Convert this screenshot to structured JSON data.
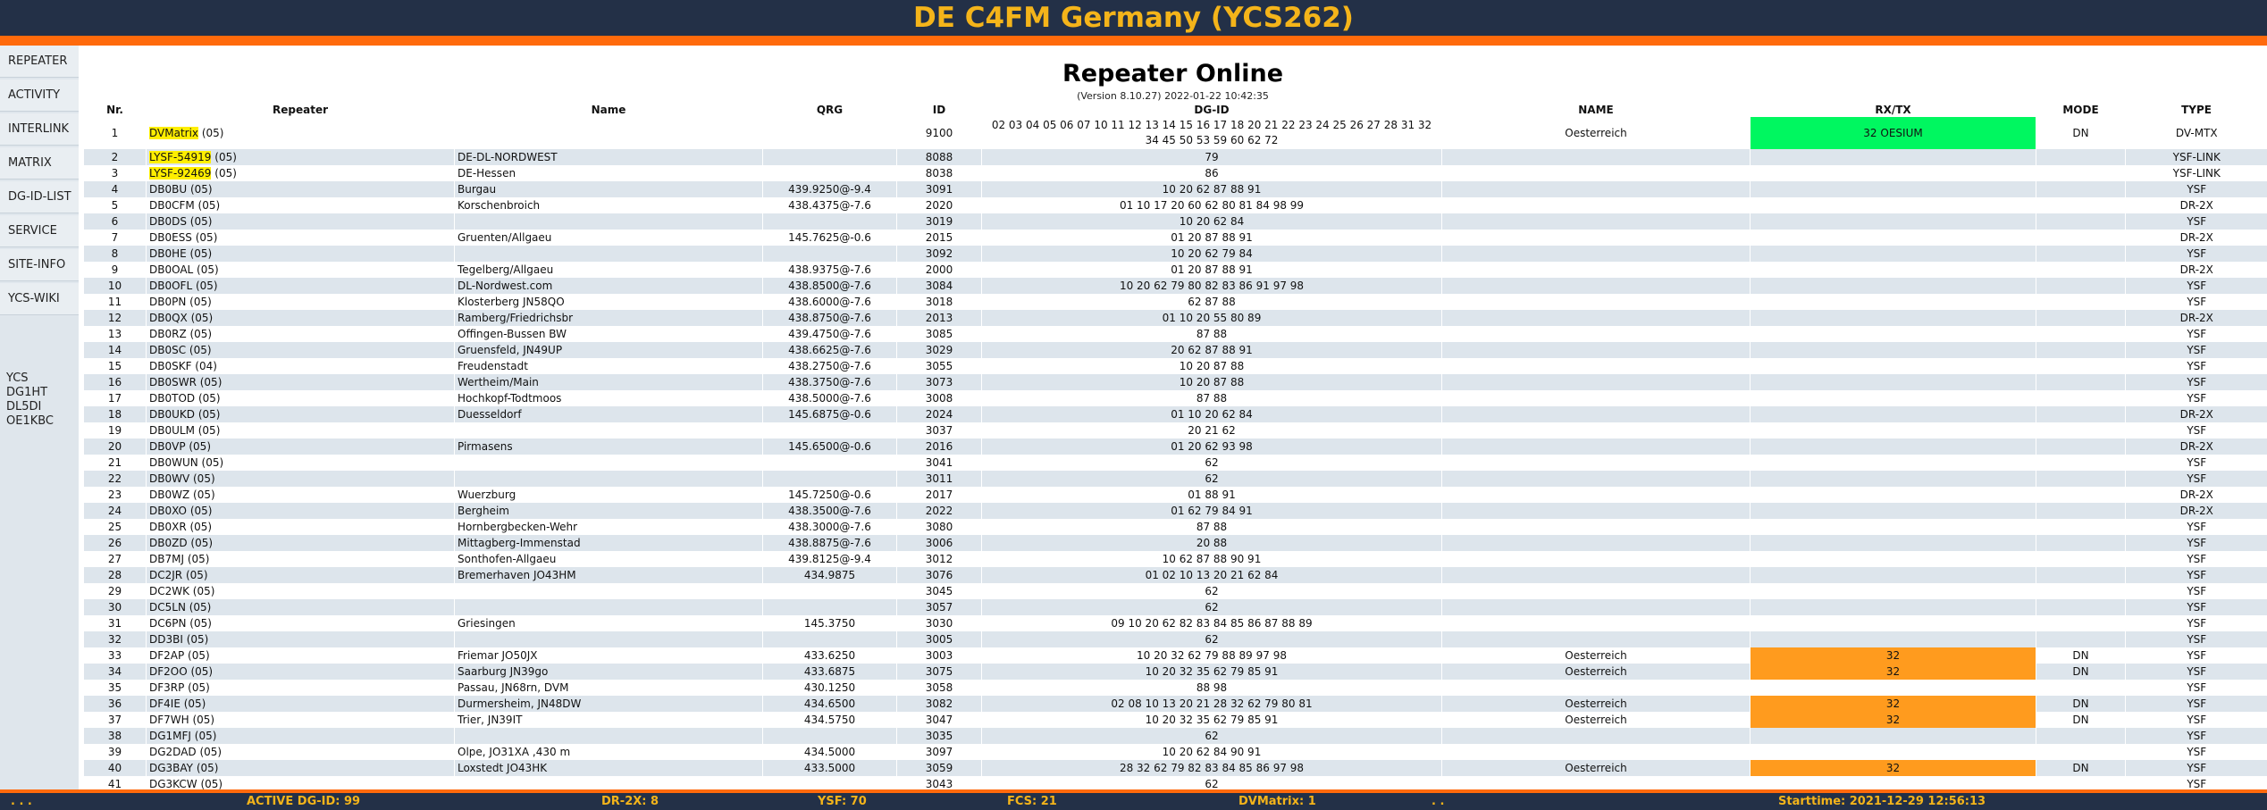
{
  "header": {
    "title": "DE C4FM Germany (YCS262)"
  },
  "nav": [
    "REPEATER",
    "ACTIVITY",
    "INTERLINK",
    "MATRIX",
    "DG-ID-LIST",
    "SERVICE",
    "SITE-INFO",
    "YCS-WIKI"
  ],
  "sideinfo": [
    "YCS",
    "DG1HT",
    "DL5DI",
    "OE1KBC"
  ],
  "main": {
    "title": "Repeater Online",
    "version": "(Version 8.10.27) 2022-01-22 10:42:35",
    "columns": [
      "Nr.",
      "Repeater",
      "Name",
      "QRG",
      "ID",
      "DG-ID",
      "NAME",
      "RX/TX",
      "MODE",
      "TYPE"
    ],
    "rows": [
      {
        "nr": "1",
        "rep": "DVMatrix",
        "suffix": " (05)",
        "name": "",
        "qrg": "",
        "id": "9100",
        "dgid": "02 03 04 05 06 07 10 11 12 13 14 15 16 17 18 20 21 22 23 24 25 26 27 28 31 32 34 45 50 53 59 60 62 72",
        "nname": "Oesterreich",
        "rxtx": "32 OESIUM",
        "mode": "DN",
        "type": "DV-MTX",
        "hl": true,
        "rxc": "green"
      },
      {
        "nr": "2",
        "rep": "LYSF-54919",
        "suffix": " (05)",
        "name": "DE-DL-NORDWEST",
        "qrg": "",
        "id": "8088",
        "dgid": "79",
        "nname": "",
        "rxtx": "",
        "mode": "",
        "type": "YSF-LINK",
        "hl": true
      },
      {
        "nr": "3",
        "rep": "LYSF-92469",
        "suffix": " (05)",
        "name": "DE-Hessen",
        "qrg": "",
        "id": "8038",
        "dgid": "86",
        "nname": "",
        "rxtx": "",
        "mode": "",
        "type": "YSF-LINK",
        "hl": true
      },
      {
        "nr": "4",
        "rep": "DB0BU (05)",
        "name": "Burgau",
        "qrg": "439.9250@-9.4",
        "id": "3091",
        "dgid": "10 20 62 87 88 91",
        "nname": "",
        "rxtx": "",
        "mode": "",
        "type": "YSF"
      },
      {
        "nr": "5",
        "rep": "DB0CFM (05)",
        "name": "Korschenbroich",
        "qrg": "438.4375@-7.6",
        "id": "2020",
        "dgid": "01 10 17 20 60 62 80 81 84 98 99",
        "nname": "",
        "rxtx": "",
        "mode": "",
        "type": "DR-2X"
      },
      {
        "nr": "6",
        "rep": "DB0DS (05)",
        "name": "",
        "qrg": "",
        "id": "3019",
        "dgid": "10 20 62 84",
        "nname": "",
        "rxtx": "",
        "mode": "",
        "type": "YSF"
      },
      {
        "nr": "7",
        "rep": "DB0ESS (05)",
        "name": "Gruenten/Allgaeu",
        "qrg": "145.7625@-0.6",
        "id": "2015",
        "dgid": "01 20 87 88 91",
        "nname": "",
        "rxtx": "",
        "mode": "",
        "type": "DR-2X"
      },
      {
        "nr": "8",
        "rep": "DB0HE (05)",
        "name": "",
        "qrg": "",
        "id": "3092",
        "dgid": "10 20 62 79 84",
        "nname": "",
        "rxtx": "",
        "mode": "",
        "type": "YSF"
      },
      {
        "nr": "9",
        "rep": "DB0OAL (05)",
        "name": "Tegelberg/Allgaeu",
        "qrg": "438.9375@-7.6",
        "id": "2000",
        "dgid": "01 20 87 88 91",
        "nname": "",
        "rxtx": "",
        "mode": "",
        "type": "DR-2X"
      },
      {
        "nr": "10",
        "rep": "DB0OFL (05)",
        "name": "DL-Nordwest.com",
        "qrg": "438.8500@-7.6",
        "id": "3084",
        "dgid": "10 20 62 79 80 82 83 86 91 97 98",
        "nname": "",
        "rxtx": "",
        "mode": "",
        "type": "YSF"
      },
      {
        "nr": "11",
        "rep": "DB0PN (05)",
        "name": "Klosterberg JN58QO",
        "qrg": "438.6000@-7.6",
        "id": "3018",
        "dgid": "62 87 88",
        "nname": "",
        "rxtx": "",
        "mode": "",
        "type": "YSF"
      },
      {
        "nr": "12",
        "rep": "DB0QX (05)",
        "name": "Ramberg/Friedrichsbr",
        "qrg": "438.8750@-7.6",
        "id": "2013",
        "dgid": "01 10 20 55 80 89",
        "nname": "",
        "rxtx": "",
        "mode": "",
        "type": "DR-2X"
      },
      {
        "nr": "13",
        "rep": "DB0RZ (05)",
        "name": "Offingen-Bussen BW",
        "qrg": "439.4750@-7.6",
        "id": "3085",
        "dgid": "87 88",
        "nname": "",
        "rxtx": "",
        "mode": "",
        "type": "YSF"
      },
      {
        "nr": "14",
        "rep": "DB0SC (05)",
        "name": "Gruensfeld, JN49UP",
        "qrg": "438.6625@-7.6",
        "id": "3029",
        "dgid": "20 62 87 88 91",
        "nname": "",
        "rxtx": "",
        "mode": "",
        "type": "YSF"
      },
      {
        "nr": "15",
        "rep": "DB0SKF (04)",
        "name": "Freudenstadt",
        "qrg": "438.2750@-7.6",
        "id": "3055",
        "dgid": "10 20 87 88",
        "nname": "",
        "rxtx": "",
        "mode": "",
        "type": "YSF"
      },
      {
        "nr": "16",
        "rep": "DB0SWR (05)",
        "name": "Wertheim/Main",
        "qrg": "438.3750@-7.6",
        "id": "3073",
        "dgid": "10 20 87 88",
        "nname": "",
        "rxtx": "",
        "mode": "",
        "type": "YSF"
      },
      {
        "nr": "17",
        "rep": "DB0TOD (05)",
        "name": "Hochkopf-Todtmoos",
        "qrg": "438.5000@-7.6",
        "id": "3008",
        "dgid": "87 88",
        "nname": "",
        "rxtx": "",
        "mode": "",
        "type": "YSF"
      },
      {
        "nr": "18",
        "rep": "DB0UKD (05)",
        "name": "Duesseldorf",
        "qrg": "145.6875@-0.6",
        "id": "2024",
        "dgid": "01 10 20 62 84",
        "nname": "",
        "rxtx": "",
        "mode": "",
        "type": "DR-2X"
      },
      {
        "nr": "19",
        "rep": "DB0ULM (05)",
        "name": "",
        "qrg": "",
        "id": "3037",
        "dgid": "20 21 62",
        "nname": "",
        "rxtx": "",
        "mode": "",
        "type": "YSF"
      },
      {
        "nr": "20",
        "rep": "DB0VP (05)",
        "name": "Pirmasens",
        "qrg": "145.6500@-0.6",
        "id": "2016",
        "dgid": "01 20 62 93 98",
        "nname": "",
        "rxtx": "",
        "mode": "",
        "type": "DR-2X"
      },
      {
        "nr": "21",
        "rep": "DB0WUN (05)",
        "name": "",
        "qrg": "",
        "id": "3041",
        "dgid": "62",
        "nname": "",
        "rxtx": "",
        "mode": "",
        "type": "YSF"
      },
      {
        "nr": "22",
        "rep": "DB0WV (05)",
        "name": "",
        "qrg": "",
        "id": "3011",
        "dgid": "62",
        "nname": "",
        "rxtx": "",
        "mode": "",
        "type": "YSF"
      },
      {
        "nr": "23",
        "rep": "DB0WZ (05)",
        "name": "Wuerzburg",
        "qrg": "145.7250@-0.6",
        "id": "2017",
        "dgid": "01 88 91",
        "nname": "",
        "rxtx": "",
        "mode": "",
        "type": "DR-2X"
      },
      {
        "nr": "24",
        "rep": "DB0XO (05)",
        "name": "Bergheim",
        "qrg": "438.3500@-7.6",
        "id": "2022",
        "dgid": "01 62 79 84 91",
        "nname": "",
        "rxtx": "",
        "mode": "",
        "type": "DR-2X"
      },
      {
        "nr": "25",
        "rep": "DB0XR (05)",
        "name": "Hornbergbecken-Wehr",
        "qrg": "438.3000@-7.6",
        "id": "3080",
        "dgid": "87 88",
        "nname": "",
        "rxtx": "",
        "mode": "",
        "type": "YSF"
      },
      {
        "nr": "26",
        "rep": "DB0ZD (05)",
        "name": "Mittagberg-Immenstad",
        "qrg": "438.8875@-7.6",
        "id": "3006",
        "dgid": "20 88",
        "nname": "",
        "rxtx": "",
        "mode": "",
        "type": "YSF"
      },
      {
        "nr": "27",
        "rep": "DB7MJ (05)",
        "name": "Sonthofen-Allgaeu",
        "qrg": "439.8125@-9.4",
        "id": "3012",
        "dgid": "10 62 87 88 90 91",
        "nname": "",
        "rxtx": "",
        "mode": "",
        "type": "YSF"
      },
      {
        "nr": "28",
        "rep": "DC2JR (05)",
        "name": "Bremerhaven JO43HM",
        "qrg": "434.9875",
        "id": "3076",
        "dgid": "01 02 10 13 20 21 62 84",
        "nname": "",
        "rxtx": "",
        "mode": "",
        "type": "YSF"
      },
      {
        "nr": "29",
        "rep": "DC2WK (05)",
        "name": "",
        "qrg": "",
        "id": "3045",
        "dgid": "62",
        "nname": "",
        "rxtx": "",
        "mode": "",
        "type": "YSF"
      },
      {
        "nr": "30",
        "rep": "DC5LN (05)",
        "name": "",
        "qrg": "",
        "id": "3057",
        "dgid": "62",
        "nname": "",
        "rxtx": "",
        "mode": "",
        "type": "YSF"
      },
      {
        "nr": "31",
        "rep": "DC6PN (05)",
        "name": "Griesingen",
        "qrg": "145.3750",
        "id": "3030",
        "dgid": "09 10 20 62 82 83 84 85 86 87 88 89",
        "nname": "",
        "rxtx": "",
        "mode": "",
        "type": "YSF"
      },
      {
        "nr": "32",
        "rep": "DD3BI (05)",
        "name": "",
        "qrg": "",
        "id": "3005",
        "dgid": "62",
        "nname": "",
        "rxtx": "",
        "mode": "",
        "type": "YSF"
      },
      {
        "nr": "33",
        "rep": "DF2AP (05)",
        "name": "Friemar JO50JX",
        "qrg": "433.6250",
        "id": "3003",
        "dgid": "10 20 32 62 79 88 89 97 98",
        "nname": "Oesterreich",
        "rxtx": "32",
        "mode": "DN",
        "type": "YSF",
        "rxc": "orange"
      },
      {
        "nr": "34",
        "rep": "DF2OO (05)",
        "name": "Saarburg JN39go",
        "qrg": "433.6875",
        "id": "3075",
        "dgid": "10 20 32 35 62 79 85 91",
        "nname": "Oesterreich",
        "rxtx": "32",
        "mode": "DN",
        "type": "YSF",
        "rxc": "orange"
      },
      {
        "nr": "35",
        "rep": "DF3RP (05)",
        "name": "Passau, JN68rn, DVM",
        "qrg": "430.1250",
        "id": "3058",
        "dgid": "88 98",
        "nname": "",
        "rxtx": "",
        "mode": "",
        "type": "YSF"
      },
      {
        "nr": "36",
        "rep": "DF4IE (05)",
        "name": "Durmersheim, JN48DW",
        "qrg": "434.6500",
        "id": "3082",
        "dgid": "02 08 10 13 20 21 28 32 62 79 80 81",
        "nname": "Oesterreich",
        "rxtx": "32",
        "mode": "DN",
        "type": "YSF",
        "rxc": "orange"
      },
      {
        "nr": "37",
        "rep": "DF7WH (05)",
        "name": "Trier, JN39IT",
        "qrg": "434.5750",
        "id": "3047",
        "dgid": "10 20 32 35 62 79 85 91",
        "nname": "Oesterreich",
        "rxtx": "32",
        "mode": "DN",
        "type": "YSF",
        "rxc": "orange"
      },
      {
        "nr": "38",
        "rep": "DG1MFJ (05)",
        "name": "",
        "qrg": "",
        "id": "3035",
        "dgid": "62",
        "nname": "",
        "rxtx": "",
        "mode": "",
        "type": "YSF"
      },
      {
        "nr": "39",
        "rep": "DG2DAD (05)",
        "name": "Olpe, JO31XA ,430 m",
        "qrg": "434.5000",
        "id": "3097",
        "dgid": "10 20 62 84 90 91",
        "nname": "",
        "rxtx": "",
        "mode": "",
        "type": "YSF"
      },
      {
        "nr": "40",
        "rep": "DG3BAY (05)",
        "name": "Loxstedt JO43HK",
        "qrg": "433.5000",
        "id": "3059",
        "dgid": "28 32 62 79 82 83 84 85 86 97 98",
        "nname": "Oesterreich",
        "rxtx": "32",
        "mode": "DN",
        "type": "YSF",
        "rxc": "orange"
      },
      {
        "nr": "41",
        "rep": "DG3KCW (05)",
        "name": "",
        "qrg": "",
        "id": "3043",
        "dgid": "62",
        "nname": "",
        "rxtx": "",
        "mode": "",
        "type": "YSF"
      }
    ]
  },
  "footer": {
    "dots_left": ". . .",
    "active": "ACTIVE DG-ID: 99",
    "dr2x": "DR-2X: 8",
    "ysf": "YSF: 70",
    "fcs": "FCS: 21",
    "dvm": "DVMatrix: 1",
    "dots_mid": ". .",
    "start": "Starttime: 2021-12-29 12:56:13"
  },
  "colors": {
    "header_bg": "#233047",
    "accent": "#ff6a0c",
    "title_text": "#f4b41a",
    "rx_green": "#00f760",
    "rx_orange": "#ff9b1e",
    "callsign_highlight": "#ffee00"
  }
}
